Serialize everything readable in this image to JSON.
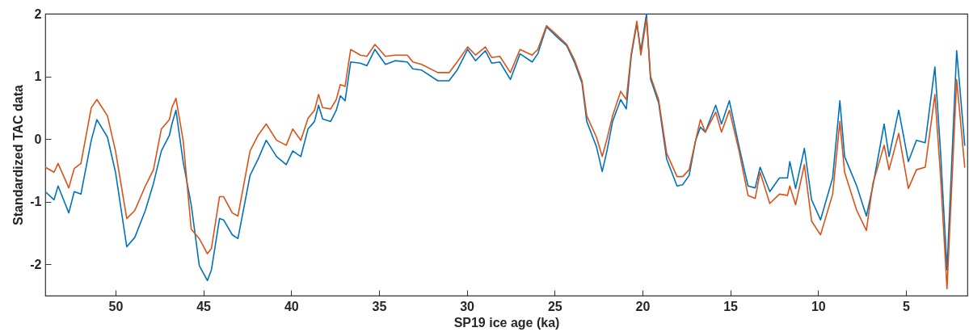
{
  "chart_data": {
    "type": "line",
    "xlabel": "SP19 ice age (ka)",
    "ylabel": "Standardized TAC data",
    "x": [
      54.0,
      53.5,
      53.27,
      52.66,
      52.35,
      51.97,
      51.38,
      51.06,
      50.46,
      50,
      49.36,
      48.9,
      48.3,
      47.84,
      47.39,
      46.93,
      46.79,
      46.56,
      46.15,
      45.69,
      45.23,
      44.77,
      44.54,
      44.08,
      43.85,
      43.35,
      43.03,
      42.34,
      41.88,
      41.42,
      40.83,
      40.28,
      39.91,
      39.45,
      39.04,
      38.67,
      38.44,
      38.21,
      37.75,
      37.43,
      37.2,
      36.93,
      36.61,
      36.06,
      35.69,
      35.23,
      34.63,
      34.08,
      33.39,
      33.07,
      32.57,
      31.65,
      31.01,
      30.55,
      29.95,
      29.5,
      28.94,
      28.58,
      28.12,
      27.52,
      26.97,
      26.28,
      25.96,
      25.46,
      24.91,
      24.31,
      23.85,
      23.44,
      23.17,
      22.62,
      22.29,
      22.02,
      21.7,
      21.24,
      20.92,
      20.64,
      20.32,
      20.09,
      19.77,
      19.54,
      19.08,
      18.62,
      18.03,
      17.71,
      17.34,
      16.97,
      16.7,
      16.42,
      15.83,
      15.5,
      15.05,
      14.5,
      13.99,
      13.58,
      13.3,
      12.75,
      12.2,
      11.74,
      11.61,
      11.28,
      10.78,
      10.37,
      9.86,
      9.17,
      8.76,
      8.49,
      7.8,
      7.25,
      6.88,
      6.24,
      5.96,
      5.41,
      4.86,
      4.4,
      3.9,
      3.35,
      3.03,
      2.66,
      2.11,
      1.65
    ],
    "series": [
      {
        "color": "#0072bd",
        "values": [
          -0.84,
          -0.97,
          -0.75,
          -1.18,
          -0.84,
          -0.88,
          -0.02,
          0.31,
          0.03,
          -0.53,
          -1.72,
          -1.57,
          -1.14,
          -0.71,
          -0.19,
          0.06,
          0.24,
          0.46,
          -0.36,
          -1.05,
          -2.02,
          -2.26,
          -2.09,
          -1.27,
          -1.29,
          -1.53,
          -1.59,
          -0.58,
          -0.32,
          -0.02,
          -0.28,
          -0.41,
          -0.19,
          -0.28,
          0.16,
          0.28,
          0.54,
          0.32,
          0.28,
          0.46,
          0.69,
          0.61,
          1.23,
          1.21,
          1.17,
          1.43,
          1.19,
          1.25,
          1.23,
          1.12,
          1.1,
          0.93,
          0.93,
          1.1,
          1.43,
          1.25,
          1.41,
          1.21,
          1.23,
          0.95,
          1.36,
          1.23,
          1.36,
          1.79,
          1.64,
          1.49,
          1.21,
          0.89,
          0.28,
          -0.12,
          -0.52,
          -0.19,
          0.28,
          0.63,
          0.48,
          1.32,
          1.84,
          1.41,
          2.0,
          0.96,
          0.58,
          -0.32,
          -0.75,
          -0.73,
          -0.58,
          -0.02,
          0.19,
          0.11,
          0.54,
          0.24,
          0.61,
          -0.12,
          -0.75,
          -0.78,
          -0.45,
          -0.84,
          -0.62,
          -0.62,
          -0.36,
          -0.79,
          -0.15,
          -0.97,
          -1.29,
          -0.62,
          0.61,
          -0.28,
          -0.75,
          -1.23,
          -0.75,
          0.24,
          -0.28,
          0.46,
          -0.36,
          -0.02,
          -0.06,
          1.15,
          -0.19,
          -2.09,
          1.41,
          -0.1
        ]
      },
      {
        "color": "#d95319",
        "values": [
          -0.45,
          -0.53,
          -0.39,
          -0.78,
          -0.47,
          -0.39,
          0.5,
          0.63,
          0.37,
          -0.19,
          -1.27,
          -1.14,
          -0.75,
          -0.49,
          0.16,
          0.31,
          0.5,
          0.65,
          -0.02,
          -1.44,
          -1.59,
          -1.83,
          -1.75,
          -0.92,
          -0.92,
          -1.18,
          -1.23,
          -0.19,
          0.06,
          0.24,
          -0.02,
          -0.1,
          0.16,
          -0.02,
          0.33,
          0.46,
          0.71,
          0.5,
          0.48,
          0.63,
          0.87,
          0.84,
          1.43,
          1.34,
          1.32,
          1.51,
          1.32,
          1.34,
          1.34,
          1.23,
          1.19,
          1.06,
          1.06,
          1.23,
          1.47,
          1.34,
          1.47,
          1.3,
          1.32,
          1.06,
          1.43,
          1.34,
          1.43,
          1.81,
          1.67,
          1.51,
          1.25,
          0.93,
          0.37,
          0.03,
          -0.28,
          0.0,
          0.37,
          0.76,
          0.63,
          1.36,
          1.88,
          1.34,
          1.92,
          1.0,
          0.63,
          -0.23,
          -0.6,
          -0.6,
          -0.49,
          -0.02,
          0.31,
          0.11,
          0.43,
          0.11,
          0.46,
          -0.19,
          -0.9,
          -0.95,
          -0.53,
          -1.03,
          -0.88,
          -0.9,
          -0.75,
          -1.05,
          -0.41,
          -1.31,
          -1.53,
          -0.88,
          0.28,
          -0.53,
          -1.14,
          -1.46,
          -0.71,
          -0.1,
          -0.49,
          0.09,
          -0.79,
          -0.49,
          -0.45,
          0.71,
          -0.58,
          -2.39,
          0.95,
          -0.45
        ]
      }
    ],
    "xlim": [
      54,
      1.5
    ],
    "xticks": [
      50,
      45,
      40,
      35,
      30,
      25,
      20,
      15,
      10,
      5
    ],
    "ylim": [
      -2.5,
      2
    ],
    "yticks": [
      -2,
      -1,
      0,
      1,
      2
    ]
  }
}
